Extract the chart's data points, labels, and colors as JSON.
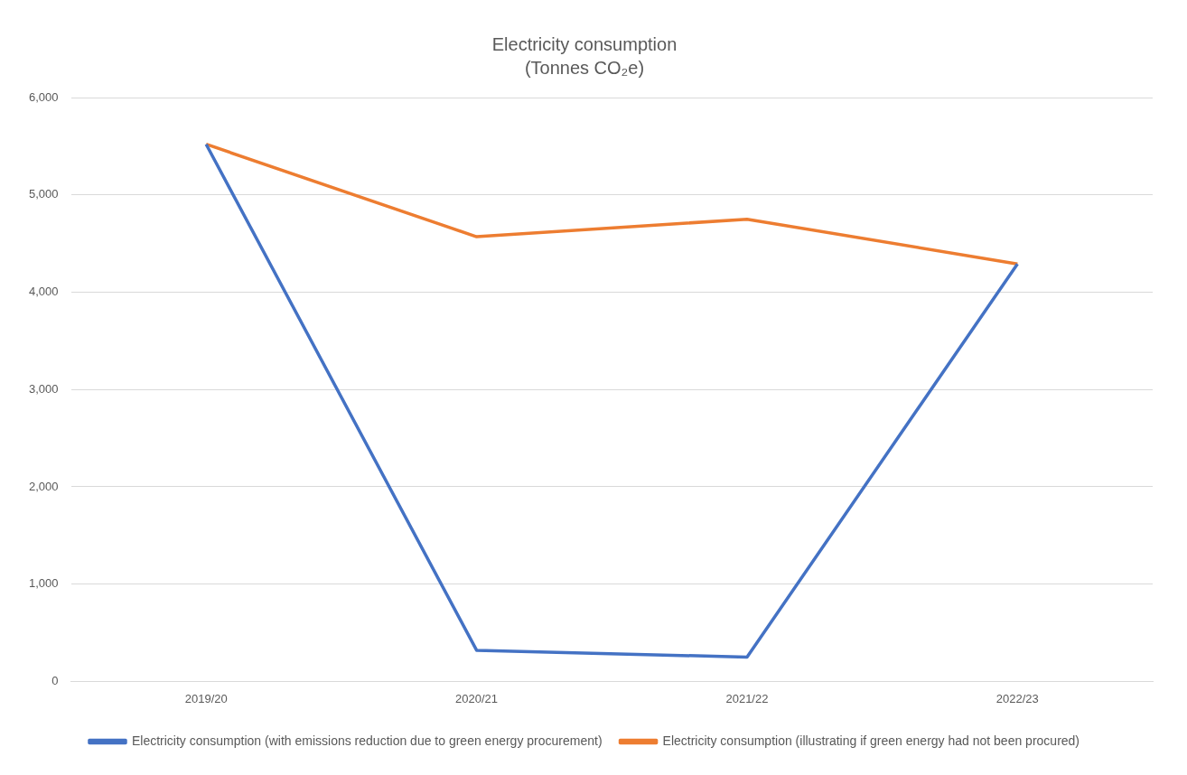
{
  "chart_data": {
    "type": "line",
    "title": "Electricity consumption",
    "subtitle": "(Tonnes CO₂e)",
    "categories": [
      "2019/20",
      "2020/21",
      "2021/22",
      "2022/23"
    ],
    "series": [
      {
        "name": "Electricity consumption (with emissions reduction due to green energy procurement)",
        "color": "#4472c4",
        "values": [
          5520,
          320,
          250,
          4290
        ]
      },
      {
        "name": "Electricity consumption (illustrating if green energy had not been procured)",
        "color": "#ed7d31",
        "values": [
          5520,
          4570,
          4750,
          4290
        ]
      }
    ],
    "ylim": [
      0,
      6000
    ],
    "yticks": [
      0,
      {
        "value": 1000,
        "label": "1,000"
      },
      {
        "value": 2000,
        "label": "2,000"
      },
      {
        "value": 3000,
        "label": "3,000"
      },
      {
        "value": 4000,
        "label": "4,000"
      },
      {
        "value": 5000,
        "label": "5,000"
      },
      {
        "value": 6000,
        "label": "6,000"
      }
    ],
    "grid": "y",
    "legend": "bottom",
    "marker": "none",
    "line_style": "solid"
  }
}
